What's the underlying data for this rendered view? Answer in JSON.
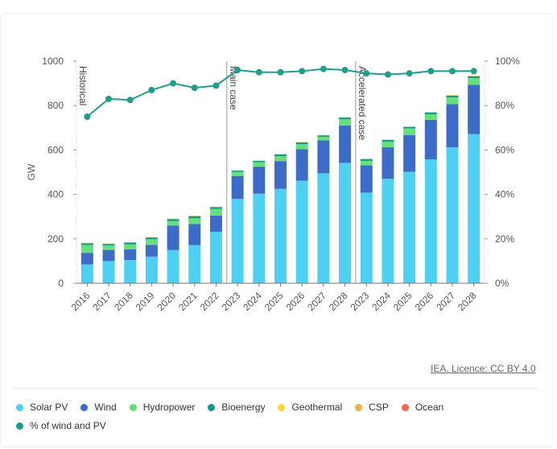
{
  "chart_data": {
    "type": "bar",
    "stacked": true,
    "categories": [
      "2016",
      "2017",
      "2018",
      "2019",
      "2020",
      "2021",
      "2022",
      "2023",
      "2024",
      "2025",
      "2026",
      "2027",
      "2028",
      "2023",
      "2024",
      "2025",
      "2026",
      "2027",
      "2028"
    ],
    "ylabel": "GW",
    "ylim": [
      0,
      1000
    ],
    "yticks": [
      "0",
      "200",
      "400",
      "600",
      "800",
      "1000"
    ],
    "y2lim": [
      0,
      100
    ],
    "y2ticks": [
      "0%",
      "20%",
      "40%",
      "60%",
      "80%",
      "100%"
    ],
    "grid": false,
    "series": [
      {
        "name": "Solar PV",
        "color": "#4dd0f2",
        "values": [
          85,
          100,
          105,
          120,
          150,
          172,
          232,
          380,
          403,
          425,
          462,
          495,
          542,
          408,
          470,
          502,
          558,
          612,
          672
        ]
      },
      {
        "name": "Wind",
        "color": "#3d6cc8",
        "values": [
          52,
          50,
          48,
          53,
          110,
          95,
          73,
          103,
          122,
          125,
          142,
          148,
          168,
          123,
          142,
          165,
          178,
          195,
          222
        ]
      },
      {
        "name": "Hydropower",
        "color": "#64e07c",
        "values": [
          35,
          20,
          22,
          25,
          20,
          25,
          30,
          18,
          20,
          22,
          22,
          16,
          28,
          20,
          25,
          30,
          25,
          30,
          30
        ]
      },
      {
        "name": "Bioenergy",
        "color": "#14998c",
        "values": [
          8,
          7,
          8,
          8,
          9,
          10,
          8,
          6,
          6,
          8,
          8,
          7,
          8,
          8,
          8,
          7,
          8,
          8,
          8
        ]
      },
      {
        "name": "Geothermal",
        "color": "#f5d835",
        "values": [
          1,
          1,
          1,
          1,
          1,
          1,
          1,
          1,
          1,
          1,
          1,
          1,
          1,
          1,
          1,
          1,
          1,
          1,
          1
        ]
      },
      {
        "name": "CSP",
        "color": "#f0b23c",
        "values": [
          1,
          1,
          1,
          1,
          1,
          1,
          1,
          1,
          1,
          1,
          1,
          1,
          1,
          1,
          1,
          1,
          1,
          1,
          1
        ]
      },
      {
        "name": "Ocean",
        "color": "#f06a4a",
        "values": [
          0,
          0,
          0,
          0,
          0,
          0,
          0,
          0,
          0,
          0,
          0,
          0,
          0,
          0,
          0,
          0,
          0,
          0,
          0
        ]
      }
    ],
    "line_series": {
      "name": "% of wind and PV",
      "color": "#1f9e8e",
      "axis": "right",
      "values": [
        75,
        83,
        82.5,
        87,
        90,
        88,
        89,
        96,
        95,
        95,
        95.5,
        96.5,
        96,
        94.5,
        94,
        94.5,
        95.5,
        95.5,
        95.5
      ]
    },
    "annotations": [
      "Historical",
      "Main case",
      "Accelerated case"
    ]
  },
  "licence": "IEA. Licence: CC BY 4.0",
  "legend": [
    {
      "label": "Solar PV",
      "color": "#4dd0f2"
    },
    {
      "label": "Wind",
      "color": "#3d6cc8"
    },
    {
      "label": "Hydropower",
      "color": "#64e07c"
    },
    {
      "label": "Bioenergy",
      "color": "#14998c"
    },
    {
      "label": "Geothermal",
      "color": "#f5d835"
    },
    {
      "label": "CSP",
      "color": "#f0b23c"
    },
    {
      "label": "Ocean",
      "color": "#f06a4a"
    },
    {
      "label": "% of wind and PV",
      "color": "#1f9e8e"
    }
  ]
}
